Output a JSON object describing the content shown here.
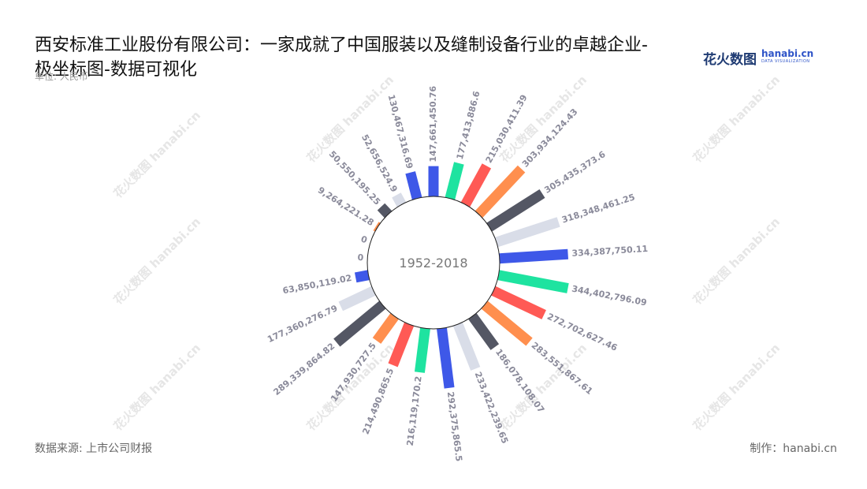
{
  "title": "西安标准工业股份有限公司：一家成就了中国服装以及缝制设备行业的卓越企业-极坐标图-数据可视化",
  "unit": "单位: 人民币",
  "logo": {
    "mark": "花火数图",
    "word": "hanabi.cn",
    "tag": "DATA VISUALIZATION"
  },
  "footer": {
    "source": "数据来源: 上市公司财报",
    "credit": "制作：hanabi.cn"
  },
  "watermark_text": "花火数图 hanabi.cn",
  "colors": [
    "#3e58e8",
    "#1ee3a0",
    "#ff5a55",
    "#ff8f4e",
    "#545764",
    "#d9dde8"
  ],
  "chart_data": {
    "type": "polar-bar",
    "center_label": "1952-2018",
    "grid": false,
    "values": [
      147661450.76,
      177413886.6,
      215030411.39,
      303934124.43,
      305435373.6,
      318348461.25,
      334387750.11,
      344402796.09,
      272702627.46,
      283551867.61,
      186078108.07,
      233422239.65,
      292375865.5,
      216119170.2,
      214490865.5,
      147930727.5,
      289339864.82,
      177360276.79,
      63850119.02,
      0,
      0,
      9264221.28,
      50550195.25,
      52656524.9,
      130467316.69
    ],
    "labels": [
      "147,661,450.76",
      "177,413,886.6",
      "215,030,411.39",
      "303,934,124.43",
      "305,435,373.6",
      "318,348,461.25",
      "334,387,750.11",
      "344,402,796.09",
      "272,702,627.46",
      "283,551,867.61",
      "186,078,108.07",
      "233,422,239.65",
      "292,375,865.5",
      "216,119,170.2",
      "214,490,865.5",
      "147,930,727.5",
      "289,339,864.82",
      "177,360,276.79",
      "63,850,119.02",
      "0",
      "0",
      "9,264,221.28",
      "50,550,195.25",
      "52,656,524.9",
      "130,467,316.69"
    ]
  }
}
